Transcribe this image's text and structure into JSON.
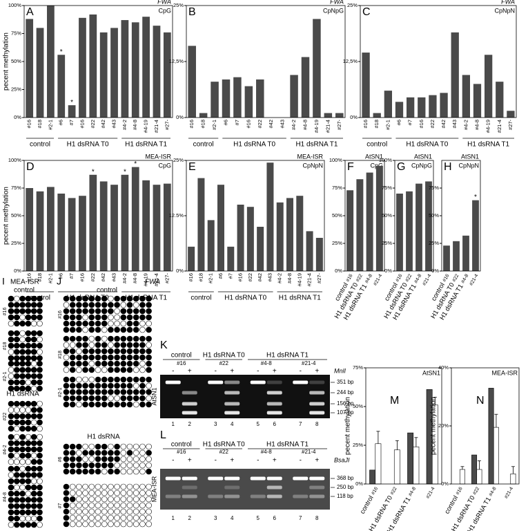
{
  "chart_data": [
    {
      "type": "bar",
      "panel": "A",
      "title": "FWA",
      "subtitle": "CpG",
      "ylabel": "pecent methylation",
      "groups": [
        {
          "label": "control",
          "categories": [
            "#16",
            "#18",
            "#2-1"
          ]
        },
        {
          "label": "H1 dsRNA T0",
          "categories": [
            "#6",
            "#7",
            "#16",
            "#22",
            "#42",
            "#43"
          ]
        },
        {
          "label": "H1 dsRNA T1",
          "categories": [
            "#4-2",
            "#4-8",
            "#4-19",
            "#21-4",
            "#27-"
          ]
        }
      ],
      "values": [
        88,
        80,
        100,
        56,
        11,
        89,
        92,
        76,
        80,
        87,
        85,
        90,
        82,
        76
      ],
      "stars": [
        null,
        null,
        null,
        "*",
        "*",
        null,
        null,
        null,
        null,
        null,
        null,
        null,
        null,
        null
      ],
      "color": "#4a4a4a",
      "ylim": [
        0,
        100
      ],
      "yticks": [
        {
          "value": 0,
          "label": "0%"
        },
        {
          "value": 25,
          "label": "25%"
        },
        {
          "value": 50,
          "label": "50%"
        },
        {
          "value": 75,
          "label": "75%"
        },
        {
          "value": 100,
          "label": "100%"
        }
      ]
    },
    {
      "type": "bar",
      "panel": "B",
      "title": "FWA",
      "subtitle": "CpNpG",
      "groups": [
        {
          "label": "control",
          "categories": [
            "#16",
            "#18",
            "#2-1"
          ]
        },
        {
          "label": "H1 dsRNA T0",
          "categories": [
            "#6",
            "#7",
            "#16",
            "#22",
            "#42",
            "#43"
          ]
        },
        {
          "label": "H1 dsRNA T1",
          "categories": [
            "#4-2",
            "#4-8",
            "#4-19",
            "#21-4",
            "#27-"
          ]
        }
      ],
      "values": [
        16,
        1,
        8,
        8.5,
        9,
        7,
        8.5,
        0,
        0,
        9.5,
        13.5,
        22,
        1,
        1
      ],
      "color": "#4a4a4a",
      "ylim": [
        0,
        25
      ],
      "yticks": [
        {
          "value": 0,
          "label": "0%"
        },
        {
          "value": 12.5,
          "label": "12,5%"
        },
        {
          "value": 25,
          "label": "25%"
        }
      ]
    },
    {
      "type": "bar",
      "panel": "C",
      "title": "FWA",
      "subtitle": "CpNpN",
      "groups": [
        {
          "label": "control",
          "categories": [
            "#16",
            "#18",
            "#2-1"
          ]
        },
        {
          "label": "H1 dsRNA T0",
          "categories": [
            "#6",
            "#7",
            "#16",
            "#22",
            "#42",
            "#43"
          ]
        },
        {
          "label": "H1 dsRNA T1",
          "categories": [
            "#4-2",
            "#4-8",
            "#4-19",
            "#21-4",
            "#27-"
          ]
        }
      ],
      "values": [
        14.5,
        1,
        6,
        3.5,
        4.5,
        4.5,
        5,
        5.5,
        19,
        9.5,
        7.5,
        14,
        8,
        1.5
      ],
      "color": "#4a4a4a",
      "ylim": [
        0,
        25
      ],
      "yticks": [
        {
          "value": 0,
          "label": "0%"
        },
        {
          "value": 12.5,
          "label": "12,5%"
        },
        {
          "value": 25,
          "label": "25%"
        }
      ]
    },
    {
      "type": "bar",
      "panel": "D",
      "title": "MEA-ISR",
      "subtitle": "CpG",
      "ylabel": "pecent methylation",
      "groups": [
        {
          "label": "control",
          "categories": [
            "#16",
            "#18",
            "#2-1"
          ]
        },
        {
          "label": "H1 dsRNA T0",
          "categories": [
            "#6",
            "#7",
            "#16",
            "#22",
            "#42",
            "#43"
          ]
        },
        {
          "label": "H1 dsRNA T1",
          "categories": [
            "#4-2",
            "#4-8",
            "#4-19",
            "#21-4",
            "#27-"
          ]
        }
      ],
      "values": [
        75,
        72,
        76,
        70,
        66,
        68,
        87,
        81,
        78,
        87,
        94,
        82,
        78,
        79
      ],
      "stars": [
        null,
        null,
        null,
        null,
        null,
        null,
        "*",
        null,
        null,
        "*",
        "*",
        null,
        null,
        null
      ],
      "color": "#4a4a4a",
      "ylim": [
        0,
        100
      ],
      "yticks": [
        {
          "value": 0,
          "label": "0%"
        },
        {
          "value": 25,
          "label": "25%"
        },
        {
          "value": 50,
          "label": "50%"
        },
        {
          "value": 75,
          "label": "75%"
        },
        {
          "value": 100,
          "label": "100%"
        }
      ]
    },
    {
      "type": "bar",
      "panel": "E",
      "title": "MEA-ISR",
      "subtitle": "CpNpN",
      "groups": [
        {
          "label": "control",
          "categories": [
            "#16",
            "#18",
            "#2-1"
          ]
        },
        {
          "label": "H1 dsRNA T0",
          "categories": [
            "#6",
            "#7",
            "#16",
            "#22",
            "#42",
            "#43"
          ]
        },
        {
          "label": "H1 dsRNA T1",
          "categories": [
            "#4-2",
            "#4-8",
            "#4-19",
            "#21-4",
            "#27-"
          ]
        }
      ],
      "values": [
        5.5,
        21,
        11.5,
        19.5,
        5.5,
        15,
        14.5,
        10,
        24.5,
        15.5,
        16.5,
        17,
        9,
        7.5
      ],
      "color": "#4a4a4a",
      "ylim": [
        0,
        25
      ],
      "yticks": [
        {
          "value": 0,
          "label": "0%"
        },
        {
          "value": 12.5,
          "label": "12.5%"
        },
        {
          "value": 25,
          "label": "25%"
        }
      ]
    },
    {
      "type": "bar",
      "panel": "F",
      "title": "AtSN1",
      "subtitle": "CpG",
      "groups": [
        {
          "label": "control",
          "categories": [
            "#16"
          ]
        },
        {
          "label": "H1 dsRNA T0",
          "categories": [
            "#22"
          ]
        },
        {
          "label": "H1 dsRNA T1",
          "categories": [
            "#4-8",
            "#21-4"
          ]
        }
      ],
      "values": [
        73,
        83,
        89,
        95
      ],
      "color": "#4a4a4a",
      "ylim": [
        0,
        100
      ],
      "yticks": [
        {
          "value": 0,
          "label": "0%"
        },
        {
          "value": 25,
          "label": "25%"
        },
        {
          "value": 50,
          "label": "50%"
        },
        {
          "value": 75,
          "label": "75%"
        },
        {
          "value": 100,
          "label": "100%"
        }
      ]
    },
    {
      "type": "bar",
      "panel": "G",
      "title": "AtSN1",
      "subtitle": "CpNpG",
      "groups": [
        {
          "label": "control",
          "categories": [
            "#16"
          ]
        },
        {
          "label": "H1 dsRNA T0",
          "categories": [
            "#22"
          ]
        },
        {
          "label": "H1 dsRNA T1",
          "categories": [
            "#4-8",
            "#21-4"
          ]
        }
      ],
      "values": [
        70,
        72,
        79,
        81
      ],
      "color": "#4a4a4a",
      "ylim": [
        0,
        100
      ],
      "yticks": [
        {
          "value": 0,
          "label": "0%"
        },
        {
          "value": 25,
          "label": "25%"
        },
        {
          "value": 50,
          "label": "50%"
        },
        {
          "value": 75,
          "label": "75%"
        },
        {
          "value": 100,
          "label": "100%"
        }
      ]
    },
    {
      "type": "bar",
      "panel": "H",
      "title": "AtSN1",
      "subtitle": "CpNpN",
      "groups": [
        {
          "label": "control",
          "categories": [
            "#16"
          ]
        },
        {
          "label": "H1 dsRNA T0",
          "categories": [
            "#22"
          ]
        },
        {
          "label": "H1 dsRNA T1",
          "categories": [
            "#4-8",
            "#21-4"
          ]
        }
      ],
      "values": [
        23,
        27,
        32,
        64
      ],
      "stars": [
        null,
        null,
        null,
        "*"
      ],
      "color": "#4a4a4a",
      "ylim": [
        0,
        100
      ],
      "yticks": [
        {
          "value": 0,
          "label": "0%"
        },
        {
          "value": 25,
          "label": "25%"
        },
        {
          "value": 50,
          "label": "50%"
        },
        {
          "value": 75,
          "label": "75%"
        }
      ]
    },
    {
      "type": "bar",
      "panel": "M",
      "title": "AtSN1",
      "ylabel": "pecent methylation",
      "groups": [
        {
          "label": "control",
          "categories": [
            "#16"
          ]
        },
        {
          "label": "H1 dsRNA T0",
          "categories": [
            "#22"
          ]
        },
        {
          "label": "H1 dsRNA T1",
          "categories": [
            "#4-8",
            "#21-4"
          ]
        }
      ],
      "series": [
        {
          "color": "#4a4a4a",
          "values": [
            9,
            null,
            33,
            61
          ]
        },
        {
          "color": "#ffffff",
          "values": [
            26,
            22,
            24,
            51
          ],
          "errors": [
            8,
            6,
            6,
            5
          ]
        }
      ],
      "ylim": [
        0,
        75
      ],
      "yticks": [
        {
          "value": 0,
          "label": "0%"
        },
        {
          "value": 25,
          "label": "25%"
        },
        {
          "value": 50,
          "label": "50%"
        },
        {
          "value": 75,
          "label": "75%"
        }
      ]
    },
    {
      "type": "bar",
      "panel": "N",
      "title": "MEA-ISR",
      "ylabel": "pecent methylation",
      "groups": [
        {
          "label": "control",
          "categories": [
            "#16"
          ]
        },
        {
          "label": "H1 dsRNA T0",
          "categories": [
            "#22"
          ]
        },
        {
          "label": "H1 dsRNA T1",
          "categories": [
            "#4-8",
            "#21-4"
          ]
        }
      ],
      "series": [
        {
          "color": "#4a4a4a",
          "values": [
            null,
            10,
            33,
            null
          ]
        },
        {
          "color": "#ffffff",
          "values": [
            5,
            5,
            19.5,
            3.5
          ],
          "errors": [
            1,
            3,
            4.5,
            2.5
          ]
        }
      ],
      "ylim": [
        0,
        40
      ],
      "yticks": [
        {
          "value": 0,
          "label": "0%"
        },
        {
          "value": 20,
          "label": "20%"
        },
        {
          "value": 40,
          "label": "40%"
        }
      ]
    }
  ],
  "gels": [
    {
      "panel": "K",
      "probe": "AtSN1",
      "enzyme": "MnlI",
      "groups": [
        {
          "label": "control",
          "samples": [
            "#16"
          ]
        },
        {
          "label": "H1 dsRNA T0",
          "samples": [
            "#22"
          ]
        },
        {
          "label": "H1 dsRNA T1",
          "samples": [
            "#4-8",
            "#21-4"
          ]
        }
      ],
      "signs": [
        "-",
        "+"
      ],
      "lanes": [
        1,
        2,
        3,
        4,
        5,
        6,
        7,
        8
      ],
      "sizes": [
        "351 bp",
        "244 bp",
        "156 bp",
        "107 bp"
      ]
    },
    {
      "panel": "L",
      "probe": "MEA-ISR",
      "enzyme": "BsaJI",
      "groups": [
        {
          "label": "control",
          "samples": [
            "#16"
          ]
        },
        {
          "label": "H1 dsRNA T0",
          "samples": [
            "#22"
          ]
        },
        {
          "label": "H1 dsRNA T1",
          "samples": [
            "#4-8",
            "#21-4"
          ]
        }
      ],
      "signs": [
        "-",
        "+"
      ],
      "lanes": [
        1,
        2,
        3,
        4,
        5,
        6,
        7,
        8
      ],
      "sizes": [
        "368 bp",
        "250 bp",
        "118 bp"
      ]
    }
  ],
  "diagrams": [
    {
      "panel": "I",
      "title": "MEA-ISR",
      "groups": [
        {
          "label": "control",
          "samples": [
            "#16",
            "#18",
            "#2-1"
          ]
        },
        {
          "label": "H1 dsRNA",
          "samples": [
            "#22",
            "#4-2",
            "#4-8"
          ]
        }
      ]
    },
    {
      "panel": "J",
      "title": "FWA",
      "groups": [
        {
          "label": "control",
          "samples": [
            "#16",
            "#18",
            "#2-1"
          ]
        },
        {
          "label": "H1 dsRNA",
          "samples": [
            "#6",
            "#7"
          ]
        }
      ]
    }
  ]
}
